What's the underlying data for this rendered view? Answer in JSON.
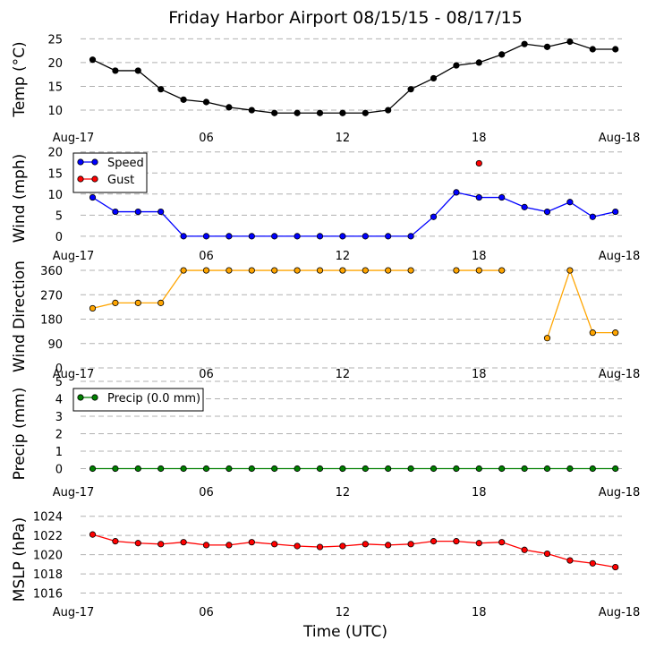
{
  "title": "Friday Harbor Airport 08/15/15 - 08/17/15",
  "xlabel": "Time (UTC)",
  "time_ticks": [
    "Aug-17",
    "06",
    "12",
    "18",
    "Aug-18"
  ],
  "chart_data": [
    {
      "type": "line",
      "ylabel": "Temp (°C)",
      "ylim": [
        7,
        26
      ],
      "yticks": [
        10,
        15,
        20,
        25
      ],
      "grid": "horizontal dashed",
      "x": [
        0,
        1,
        2,
        3,
        4,
        5,
        6,
        7,
        8,
        9,
        10,
        11,
        12,
        13,
        14,
        15,
        16,
        17,
        18,
        19,
        20,
        21,
        22,
        23
      ],
      "series": [
        {
          "color": "#000000",
          "values": [
            20.6,
            18.3,
            18.3,
            14.4,
            12.2,
            11.7,
            10.6,
            10.0,
            9.4,
            9.4,
            9.4,
            9.4,
            9.4,
            10.0,
            14.4,
            16.7,
            19.4,
            20.0,
            21.7,
            23.9,
            23.3,
            24.4,
            22.8,
            22.8
          ]
        }
      ]
    },
    {
      "type": "line",
      "ylabel": "Wind (mph)",
      "ylim": [
        -3,
        21
      ],
      "yticks": [
        0,
        5,
        10,
        15,
        20
      ],
      "grid": "horizontal dashed",
      "legend": "top-left",
      "x": [
        0,
        1,
        2,
        3,
        4,
        5,
        6,
        7,
        8,
        9,
        10,
        11,
        12,
        13,
        14,
        15,
        16,
        17,
        18,
        19,
        20,
        21,
        22,
        23
      ],
      "series": [
        {
          "name": "Speed",
          "color": "#0000ff",
          "values": [
            9.2,
            5.8,
            5.8,
            5.8,
            0,
            0,
            0,
            0,
            0,
            0,
            0,
            0,
            0,
            0,
            0,
            4.6,
            10.4,
            9.2,
            9.2,
            6.9,
            5.8,
            8.1,
            4.6,
            5.8
          ]
        },
        {
          "name": "Gust",
          "color": "#ff0000",
          "values": [
            null,
            null,
            null,
            null,
            null,
            null,
            null,
            null,
            null,
            null,
            null,
            null,
            null,
            null,
            null,
            null,
            null,
            17.3,
            null,
            null,
            null,
            null,
            null,
            null
          ]
        }
      ]
    },
    {
      "type": "line",
      "ylabel": "Wind Direction",
      "ylim": [
        0,
        380
      ],
      "yticks": [
        0,
        90,
        180,
        270,
        360
      ],
      "grid": "horizontal dashed",
      "x": [
        0,
        1,
        2,
        3,
        4,
        5,
        6,
        7,
        8,
        9,
        10,
        11,
        12,
        13,
        14,
        15,
        16,
        17,
        18,
        19,
        20,
        21,
        22,
        23
      ],
      "series": [
        {
          "color": "#ffa500",
          "values": [
            220,
            240,
            240,
            240,
            360,
            360,
            360,
            360,
            360,
            360,
            360,
            360,
            360,
            360,
            360,
            null,
            360,
            360,
            360,
            null,
            110,
            360,
            130,
            130
          ]
        }
      ]
    },
    {
      "type": "line",
      "ylabel": "Precip (mm)",
      "ylim": [
        -1,
        5
      ],
      "yticks": [
        0,
        1,
        2,
        3,
        4,
        5
      ],
      "grid": "horizontal dashed",
      "legend": "top-left",
      "x": [
        0,
        1,
        2,
        3,
        4,
        5,
        6,
        7,
        8,
        9,
        10,
        11,
        12,
        13,
        14,
        15,
        16,
        17,
        18,
        19,
        20,
        21,
        22,
        23
      ],
      "series": [
        {
          "name": "Precip (0.0 mm)",
          "color": "#008000",
          "values": [
            0,
            0,
            0,
            0,
            0,
            0,
            0,
            0,
            0,
            0,
            0,
            0,
            0,
            0,
            0,
            0,
            0,
            0,
            0,
            0,
            0,
            0,
            0,
            0
          ]
        }
      ]
    },
    {
      "type": "line",
      "ylabel": "MSLP (hPa)",
      "ylim": [
        1014,
        1025
      ],
      "yticks": [
        1016,
        1018,
        1020,
        1022,
        1024
      ],
      "grid": "horizontal dashed",
      "x": [
        0,
        1,
        2,
        3,
        4,
        5,
        6,
        7,
        8,
        9,
        10,
        11,
        12,
        13,
        14,
        15,
        16,
        17,
        18,
        19,
        20,
        21,
        22,
        23
      ],
      "series": [
        {
          "color": "#ff0000",
          "values": [
            1022.1,
            1021.4,
            1021.2,
            1021.1,
            1021.3,
            1021.0,
            1021.0,
            1021.3,
            1021.1,
            1020.9,
            1020.8,
            1020.9,
            1021.1,
            1021.0,
            1021.1,
            1021.4,
            1021.4,
            1021.2,
            1021.3,
            1020.5,
            1020.1,
            1019.4,
            1019.1,
            1018.7
          ]
        }
      ]
    }
  ]
}
